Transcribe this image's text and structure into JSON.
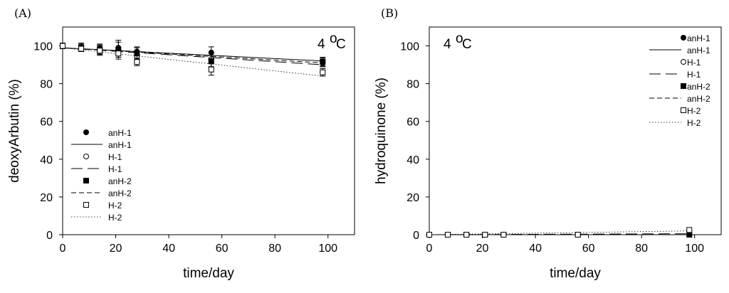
{
  "chart_data": [
    {
      "type": "scatter",
      "panel_label": "(A)",
      "annotation": "4 °C",
      "annotation_number": "4",
      "annotation_degree": "o",
      "annotation_unit": "C",
      "xlabel": "time/day",
      "ylabel": "deoxyArbutin (%)",
      "xlim": [
        0,
        110
      ],
      "ylim": [
        0,
        110
      ],
      "xticks": [
        0,
        20,
        40,
        60,
        80,
        100
      ],
      "yticks": [
        0,
        20,
        40,
        60,
        80,
        100
      ],
      "legend_position": "bottom-left",
      "series": [
        {
          "name": "anH-1",
          "marker": "filled-circle",
          "x": [
            0,
            7,
            14,
            21,
            28,
            56,
            98
          ],
          "y": [
            100,
            99.5,
            98.5,
            99,
            97,
            96.5,
            91.5
          ],
          "err": [
            1.5,
            2,
            2,
            3,
            2.5,
            3,
            2.5
          ],
          "fit": {
            "name": "anH-1",
            "style": "solid",
            "x": [
              0,
              98
            ],
            "y": [
              99,
              92
            ]
          }
        },
        {
          "name": "H-1",
          "marker": "open-circle",
          "x": [
            0,
            7,
            14,
            21,
            28,
            56,
            98
          ],
          "y": [
            100,
            99,
            98,
            97,
            94.5,
            93,
            91
          ],
          "err": [
            1,
            2,
            3,
            2,
            2,
            2,
            2
          ],
          "fit": {
            "name": "H-1",
            "style": "long-dash",
            "x": [
              0,
              98
            ],
            "y": [
              99,
              90
            ]
          }
        },
        {
          "name": "anH-2",
          "marker": "filled-square",
          "x": [
            0,
            7,
            14,
            21,
            28,
            56,
            98
          ],
          "y": [
            100,
            99,
            98,
            98,
            96,
            92,
            91.5
          ],
          "err": [
            1,
            1.5,
            2,
            5,
            3,
            3,
            2
          ],
          "fit": {
            "name": "anH-2",
            "style": "short-dash",
            "x": [
              0,
              98
            ],
            "y": [
              99,
              91
            ]
          }
        },
        {
          "name": "H-2",
          "marker": "open-square",
          "x": [
            0,
            7,
            14,
            21,
            28,
            56,
            98
          ],
          "y": [
            100,
            98.5,
            97.5,
            96,
            91.5,
            87.5,
            86
          ],
          "err": [
            1,
            1.5,
            2,
            2,
            2,
            3,
            2
          ],
          "fit": {
            "name": "H-2",
            "style": "dotted",
            "x": [
              0,
              98
            ],
            "y": [
              99,
              84
            ]
          }
        }
      ]
    },
    {
      "type": "scatter",
      "panel_label": "(B)",
      "annotation": "4 °C",
      "annotation_number": "4",
      "annotation_degree": "o",
      "annotation_unit": "C",
      "xlabel": "time/day",
      "ylabel": "hydroquinone (%)",
      "xlim": [
        0,
        110
      ],
      "ylim": [
        0,
        110
      ],
      "xticks": [
        0,
        20,
        40,
        60,
        80,
        100
      ],
      "yticks": [
        0,
        20,
        40,
        60,
        80,
        100
      ],
      "legend_position": "top-right",
      "series": [
        {
          "name": "anH-1",
          "marker": "filled-circle",
          "x": [
            0,
            7,
            14,
            21,
            28,
            56,
            98
          ],
          "y": [
            0,
            0,
            0,
            0,
            0,
            0,
            0
          ],
          "err": [],
          "fit": {
            "name": "anH-1",
            "style": "solid",
            "x": [
              0,
              98
            ],
            "y": [
              0,
              0
            ]
          }
        },
        {
          "name": "H-1",
          "marker": "open-circle",
          "x": [
            0,
            7,
            14,
            21,
            28,
            56,
            98
          ],
          "y": [
            0,
            0,
            0,
            0,
            0,
            0,
            2
          ],
          "err": [],
          "fit": {
            "name": "H-1",
            "style": "long-dash",
            "x": [
              0,
              98
            ],
            "y": [
              0,
              0.5
            ]
          }
        },
        {
          "name": "anH-2",
          "marker": "filled-square",
          "x": [
            0,
            7,
            14,
            21,
            28,
            56,
            98
          ],
          "y": [
            0,
            0,
            0,
            0,
            0,
            0,
            0
          ],
          "err": [],
          "fit": {
            "name": "anH-2",
            "style": "short-dash",
            "x": [
              0,
              98
            ],
            "y": [
              0,
              0
            ]
          }
        },
        {
          "name": "H-2",
          "marker": "open-square",
          "x": [
            0,
            7,
            14,
            21,
            28,
            56,
            98
          ],
          "y": [
            0,
            0,
            0,
            0,
            0,
            0,
            2.5
          ],
          "err": [],
          "fit": {
            "name": "H-2",
            "style": "dotted",
            "x": [
              0,
              98
            ],
            "y": [
              0,
              2
            ]
          }
        }
      ]
    }
  ]
}
